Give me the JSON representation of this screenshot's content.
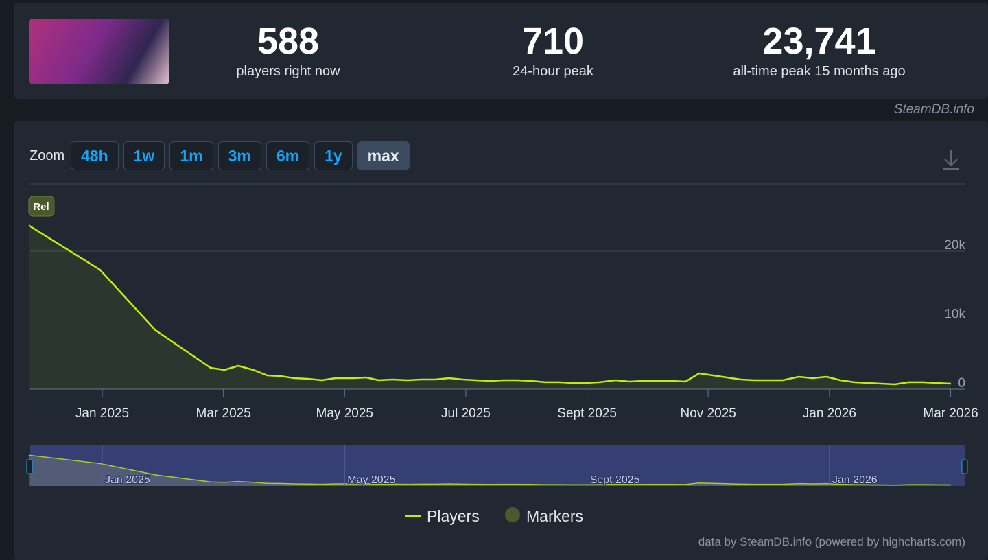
{
  "header": {
    "stats": [
      {
        "value": "588",
        "label": "players right now"
      },
      {
        "value": "710",
        "label": "24-hour peak"
      },
      {
        "value": "23,741",
        "label": "all-time peak 15 months ago"
      }
    ],
    "credit": "SteamDB.info"
  },
  "zoom": {
    "label": "Zoom",
    "buttons": [
      "48h",
      "1w",
      "1m",
      "3m",
      "6m",
      "1y",
      "max"
    ],
    "active": 6
  },
  "chart_data": {
    "type": "line",
    "x": [
      2024.899,
      2024.997,
      2025.073,
      2025.149,
      2025.168,
      2025.187,
      2025.208,
      2025.227,
      2025.245,
      2025.264,
      2025.283,
      2025.302,
      2025.321,
      2025.345,
      2025.363,
      2025.38,
      2025.399,
      2025.42,
      2025.439,
      2025.458,
      2025.477,
      2025.496,
      2025.514,
      2025.533,
      2025.552,
      2025.571,
      2025.59,
      2025.609,
      2025.628,
      2025.647,
      2025.665,
      2025.684,
      2025.706,
      2025.725,
      2025.744,
      2025.763,
      2025.782,
      2025.802,
      2025.821,
      2025.84,
      2025.859,
      2025.878,
      2025.897,
      2025.916,
      2025.936,
      2025.958,
      2025.977,
      2025.996,
      2026.015,
      2026.034,
      2026.053,
      2026.071,
      2026.09,
      2026.109,
      2026.128,
      2026.147,
      2026.167
    ],
    "series": [
      {
        "name": "Players",
        "color": "#beee11",
        "values": [
          23741,
          17300,
          8560,
          3080,
          2790,
          3380,
          2790,
          1990,
          1890,
          1590,
          1490,
          1290,
          1590,
          1590,
          1690,
          1290,
          1390,
          1290,
          1390,
          1390,
          1590,
          1390,
          1290,
          1190,
          1290,
          1290,
          1190,
          1000,
          1000,
          900,
          900,
          1000,
          1290,
          1090,
          1190,
          1190,
          1190,
          1090,
          2290,
          1990,
          1690,
          1390,
          1290,
          1290,
          1290,
          1790,
          1590,
          1790,
          1290,
          1000,
          900,
          800,
          700,
          1000,
          1000,
          900,
          800
        ]
      }
    ],
    "markers": {
      "name": "Markers",
      "color": "#4a5a2c"
    },
    "annotations": [
      {
        "label": "Rel",
        "x": 2024.899
      }
    ],
    "xlim": [
      2024.9,
      2026.186
    ],
    "xticks": [
      {
        "value": 2025.0,
        "label": "Jan 2025"
      },
      {
        "value": 2025.1667,
        "label": "Mar 2025"
      },
      {
        "value": 2025.3333,
        "label": "May 2025"
      },
      {
        "value": 2025.5,
        "label": "Jul 2025"
      },
      {
        "value": 2025.6667,
        "label": "Sept 2025"
      },
      {
        "value": 2025.8333,
        "label": "Nov 2025"
      },
      {
        "value": 2026.0,
        "label": "Jan 2026"
      },
      {
        "value": 2026.1667,
        "label": "Mar 2026"
      }
    ],
    "navigator_ticks": [
      0,
      2,
      4,
      6
    ],
    "ylim": [
      0,
      29750
    ],
    "yticks": [
      0,
      {
        "value": 10000,
        "label": "10k"
      },
      {
        "value": 20000,
        "label": "20k"
      }
    ],
    "grid": true,
    "credit": "data by SteamDB.info (powered by highcharts.com)"
  }
}
